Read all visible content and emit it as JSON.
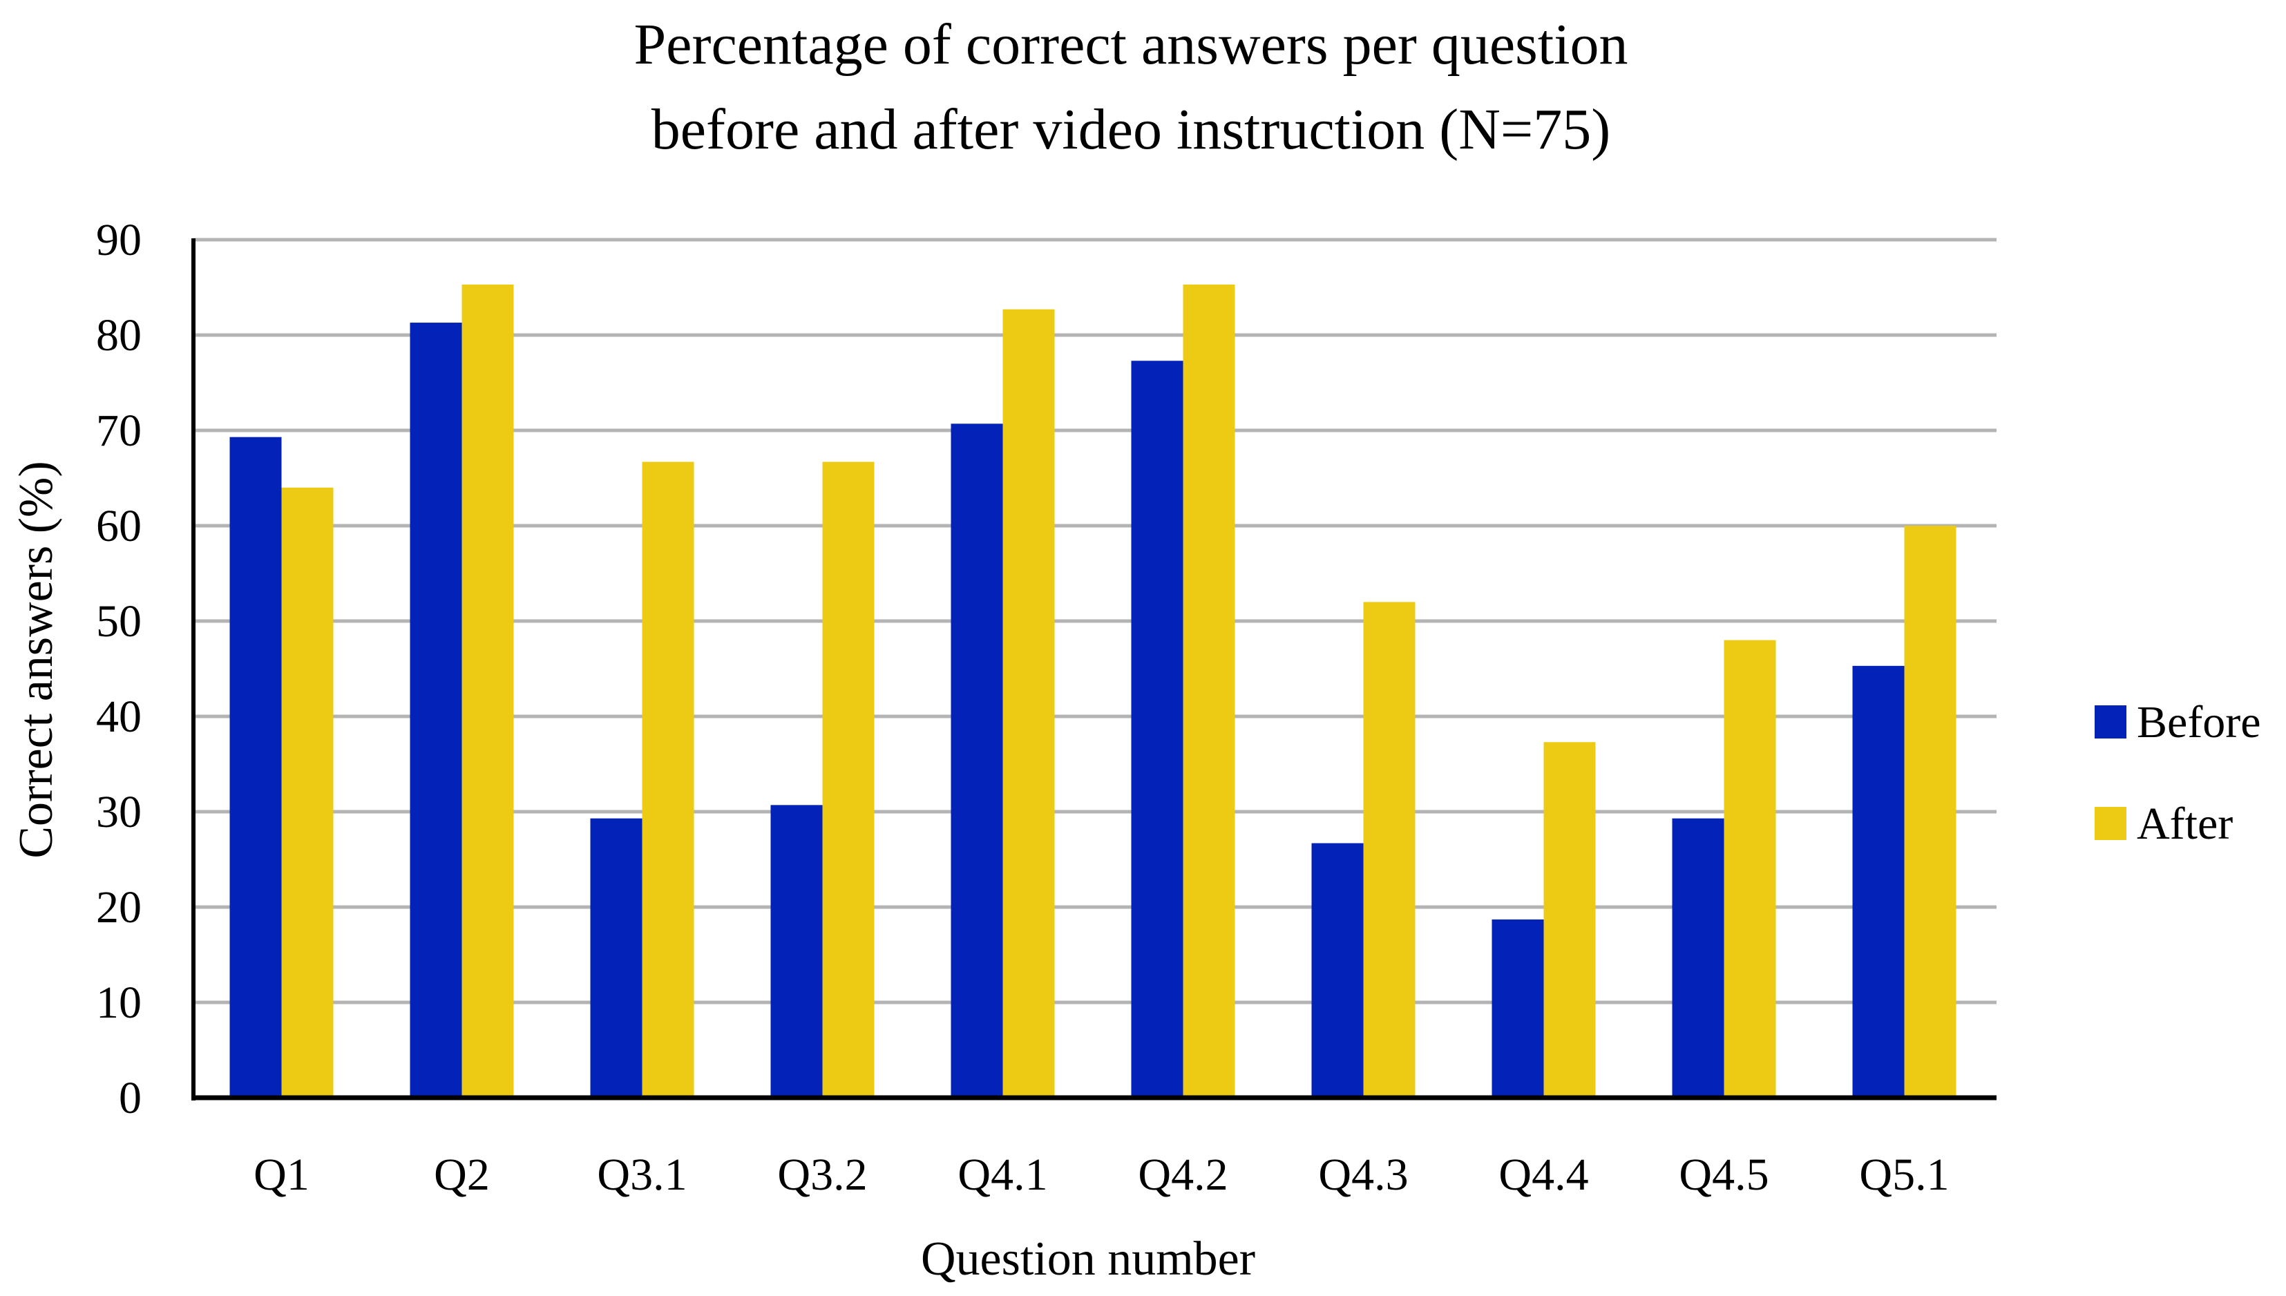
{
  "chart_data": {
    "type": "bar",
    "title": [
      "Percentage of correct answers per question",
      "before and after video instruction (N=75)"
    ],
    "xlabel": "Question number",
    "ylabel": "Correct answers (%)",
    "ylim": [
      0,
      90
    ],
    "yticks": [
      "0",
      "10",
      "20",
      "30",
      "40",
      "50",
      "60",
      "70",
      "80",
      "90"
    ],
    "grid": true,
    "legend_position": "right",
    "categories": [
      "Q1",
      "Q2",
      "Q3.1",
      "Q3.2",
      "Q4.1",
      "Q4.2",
      "Q4.3",
      "Q4.4",
      "Q4.5",
      "Q5.1"
    ],
    "series": [
      {
        "name": "Before",
        "color": "#0222B8",
        "values": [
          69.3,
          81.3,
          29.3,
          30.7,
          70.7,
          77.3,
          26.7,
          18.7,
          29.3,
          45.3
        ]
      },
      {
        "name": "After",
        "color": "#EDCB15",
        "values": [
          64.0,
          85.3,
          66.7,
          66.7,
          82.7,
          85.3,
          52.0,
          37.3,
          48.0,
          60.0
        ]
      }
    ]
  }
}
